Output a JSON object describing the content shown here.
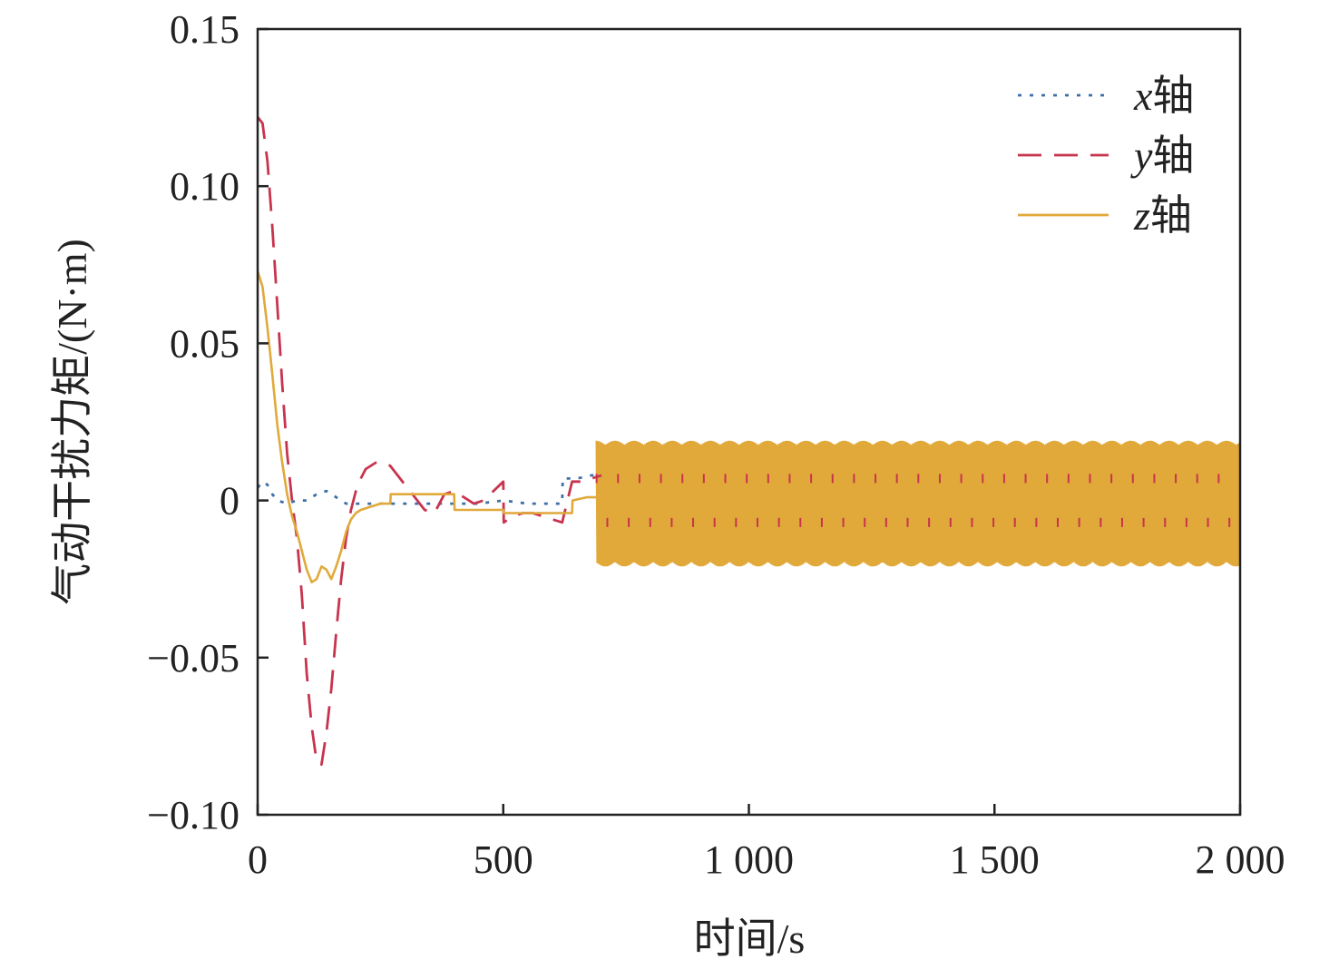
{
  "chart_data": {
    "type": "line",
    "xlabel": "时间/s",
    "ylabel": "气动干扰力矩/(N·m)",
    "xlim": [
      0,
      2000
    ],
    "ylim": [
      -0.1,
      0.15
    ],
    "x_ticks": [
      0,
      500,
      1000,
      1500,
      2000
    ],
    "x_tick_labels": [
      "0",
      "500",
      "1 000",
      "1 500",
      "2 000"
    ],
    "y_ticks": [
      -0.1,
      -0.05,
      0,
      0.05,
      0.1,
      0.15
    ],
    "y_tick_labels": [
      "−0.10",
      "−0.05",
      "0",
      "0.05",
      "0.10",
      "0.15"
    ],
    "grid": false,
    "legend_position": "top-right",
    "series": [
      {
        "name_var": "x",
        "name_suffix": "轴",
        "style": "dotted",
        "color": "#3f6fa8",
        "x": [
          0,
          10,
          20,
          30,
          40,
          60,
          80,
          100,
          120,
          140,
          160,
          180,
          200,
          250,
          300,
          350,
          400,
          450,
          500,
          550,
          600,
          620,
          621,
          650,
          680,
          700
        ],
        "y": [
          0.004,
          0.006,
          0.005,
          0.002,
          0.0,
          -0.001,
          0.0,
          0.0,
          0.002,
          0.003,
          0.001,
          -0.001,
          -0.001,
          -0.001,
          -0.001,
          -0.001,
          -0.001,
          -0.001,
          0.0,
          -0.001,
          -0.001,
          -0.001,
          0.007,
          0.007,
          0.008,
          0.008
        ]
      },
      {
        "name_var": "y",
        "name_suffix": "轴",
        "style": "dashed",
        "color": "#c8344e",
        "x": [
          0,
          10,
          20,
          30,
          40,
          50,
          60,
          70,
          80,
          90,
          100,
          110,
          120,
          130,
          140,
          150,
          160,
          170,
          180,
          190,
          200,
          210,
          220,
          240,
          260,
          270,
          280,
          300,
          320,
          340,
          360,
          380,
          400,
          420,
          440,
          460,
          480,
          500,
          501,
          520,
          540,
          560,
          580,
          600,
          620,
          640,
          660,
          680,
          700
        ],
        "y": [
          0.122,
          0.12,
          0.108,
          0.087,
          0.062,
          0.037,
          0.015,
          0.0,
          -0.012,
          -0.03,
          -0.055,
          -0.072,
          -0.083,
          -0.084,
          -0.074,
          -0.06,
          -0.042,
          -0.025,
          -0.012,
          -0.003,
          0.003,
          0.007,
          0.01,
          0.012,
          0.012,
          0.011,
          0.009,
          0.005,
          0.001,
          -0.003,
          -0.004,
          0.002,
          0.003,
          0.001,
          -0.001,
          0.0,
          0.003,
          0.006,
          -0.007,
          -0.005,
          -0.004,
          -0.004,
          -0.005,
          -0.006,
          -0.007,
          0.006,
          0.006,
          0.007,
          0.008
        ]
      },
      {
        "name_var": "z",
        "name_suffix": "轴",
        "style": "solid",
        "color": "#e0a93a",
        "x": [
          0,
          10,
          20,
          30,
          40,
          50,
          60,
          70,
          80,
          90,
          100,
          110,
          120,
          130,
          140,
          150,
          160,
          170,
          180,
          190,
          200,
          210,
          230,
          250,
          270,
          271,
          300,
          350,
          400,
          401,
          450,
          500,
          501,
          550,
          600,
          640,
          641,
          670,
          700
        ],
        "y": [
          0.073,
          0.068,
          0.055,
          0.04,
          0.024,
          0.012,
          0.002,
          -0.005,
          -0.01,
          -0.016,
          -0.022,
          -0.026,
          -0.025,
          -0.021,
          -0.022,
          -0.025,
          -0.021,
          -0.016,
          -0.01,
          -0.006,
          -0.004,
          -0.003,
          -0.002,
          -0.001,
          -0.001,
          0.002,
          0.002,
          0.002,
          0.002,
          -0.003,
          -0.003,
          -0.003,
          -0.004,
          -0.004,
          -0.004,
          -0.004,
          0.0,
          0.001,
          0.001
        ]
      }
    ],
    "oscillation_band": {
      "x_start": 690,
      "x_end": 2000,
      "z_upper": 0.019,
      "z_lower": -0.021,
      "color": "#e0a93a"
    }
  }
}
